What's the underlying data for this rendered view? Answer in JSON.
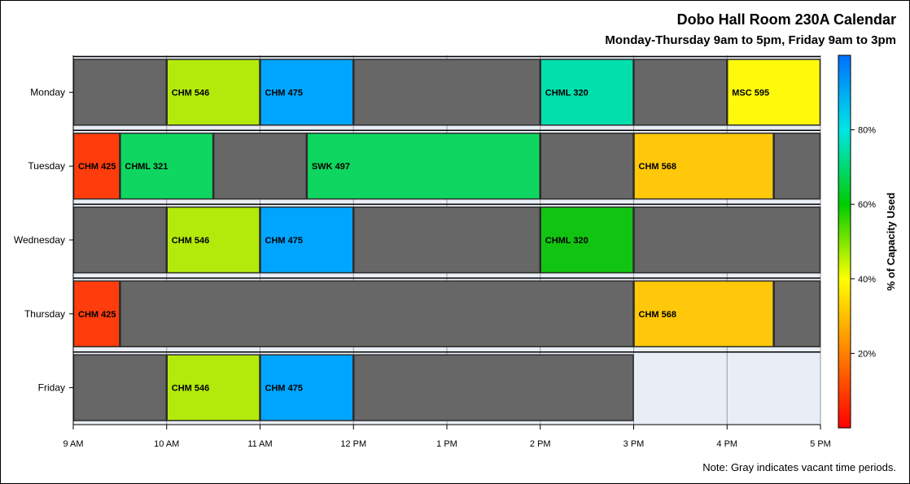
{
  "chart_data": {
    "type": "bar",
    "title": "Dobo Hall Room 230A Calendar",
    "subtitle": "Monday-Thursday 9am to 5pm, Friday 9am to 3pm",
    "note": "Note: Gray indicates vacant time periods.",
    "x_ticks": [
      "9 AM",
      "10 AM",
      "11 AM",
      "12 PM",
      "1 PM",
      "2 PM",
      "3 PM",
      "4 PM",
      "5 PM"
    ],
    "xlim": [
      9,
      17
    ],
    "categories": [
      "Monday",
      "Tuesday",
      "Wednesday",
      "Thursday",
      "Friday"
    ],
    "colorbar": {
      "label": "% of Capacity Used",
      "ticks": [
        "20%",
        "40%",
        "60%",
        "80%"
      ],
      "tick_values": [
        20,
        40,
        60,
        80
      ],
      "range": [
        0,
        100
      ],
      "colors": [
        "#ff0000",
        "#ff8000",
        "#ffff00",
        "#00cc00",
        "#00e5e5",
        "#0070ff"
      ]
    },
    "colors": {
      "vacant": "#676767",
      "off_hours": "#e9eef6"
    },
    "days": [
      {
        "day": "Monday",
        "blocks": [
          {
            "start": 9,
            "end": 10,
            "label": "",
            "color": "#676767"
          },
          {
            "start": 10,
            "end": 11,
            "label": "CHM 546",
            "color": "#b3ea0c"
          },
          {
            "start": 11,
            "end": 12,
            "label": "CHM 475",
            "color": "#00a5ff"
          },
          {
            "start": 12,
            "end": 14,
            "label": "",
            "color": "#676767"
          },
          {
            "start": 14,
            "end": 15,
            "label": "CHML 320",
            "color": "#02dfad"
          },
          {
            "start": 15,
            "end": 16,
            "label": "",
            "color": "#676767"
          },
          {
            "start": 16,
            "end": 17,
            "label": "MSC 595",
            "color": "#fffa0c"
          }
        ]
      },
      {
        "day": "Tuesday",
        "blocks": [
          {
            "start": 9,
            "end": 9.5,
            "label": "CHM 425",
            "color": "#ff3d0c"
          },
          {
            "start": 9.5,
            "end": 10.5,
            "label": "CHML 321",
            "color": "#0fd660"
          },
          {
            "start": 10.5,
            "end": 11.5,
            "label": "",
            "color": "#676767"
          },
          {
            "start": 11.5,
            "end": 14,
            "label": "SWK 497",
            "color": "#0fd660"
          },
          {
            "start": 14,
            "end": 15,
            "label": "",
            "color": "#676767"
          },
          {
            "start": 15,
            "end": 16.5,
            "label": "CHM 568",
            "color": "#ffc80a"
          },
          {
            "start": 16.5,
            "end": 17,
            "label": "",
            "color": "#676767"
          }
        ]
      },
      {
        "day": "Wednesday",
        "blocks": [
          {
            "start": 9,
            "end": 10,
            "label": "",
            "color": "#676767"
          },
          {
            "start": 10,
            "end": 11,
            "label": "CHM 546",
            "color": "#b3ea0c"
          },
          {
            "start": 11,
            "end": 12,
            "label": "CHM 475",
            "color": "#00a5ff"
          },
          {
            "start": 12,
            "end": 14,
            "label": "",
            "color": "#676767"
          },
          {
            "start": 14,
            "end": 15,
            "label": "CHML 320",
            "color": "#12c412"
          },
          {
            "start": 15,
            "end": 17,
            "label": "",
            "color": "#676767"
          }
        ]
      },
      {
        "day": "Thursday",
        "blocks": [
          {
            "start": 9,
            "end": 9.5,
            "label": "CHM 425",
            "color": "#ff3d0c"
          },
          {
            "start": 9.5,
            "end": 15,
            "label": "",
            "color": "#676767"
          },
          {
            "start": 15,
            "end": 16.5,
            "label": "CHM 568",
            "color": "#ffc80a"
          },
          {
            "start": 16.5,
            "end": 17,
            "label": "",
            "color": "#676767"
          }
        ]
      },
      {
        "day": "Friday",
        "blocks": [
          {
            "start": 9,
            "end": 10,
            "label": "",
            "color": "#676767"
          },
          {
            "start": 10,
            "end": 11,
            "label": "CHM 546",
            "color": "#b3ea0c"
          },
          {
            "start": 11,
            "end": 12,
            "label": "CHM 475",
            "color": "#00a5ff"
          },
          {
            "start": 12,
            "end": 15,
            "label": "",
            "color": "#676767"
          }
        ]
      }
    ]
  }
}
